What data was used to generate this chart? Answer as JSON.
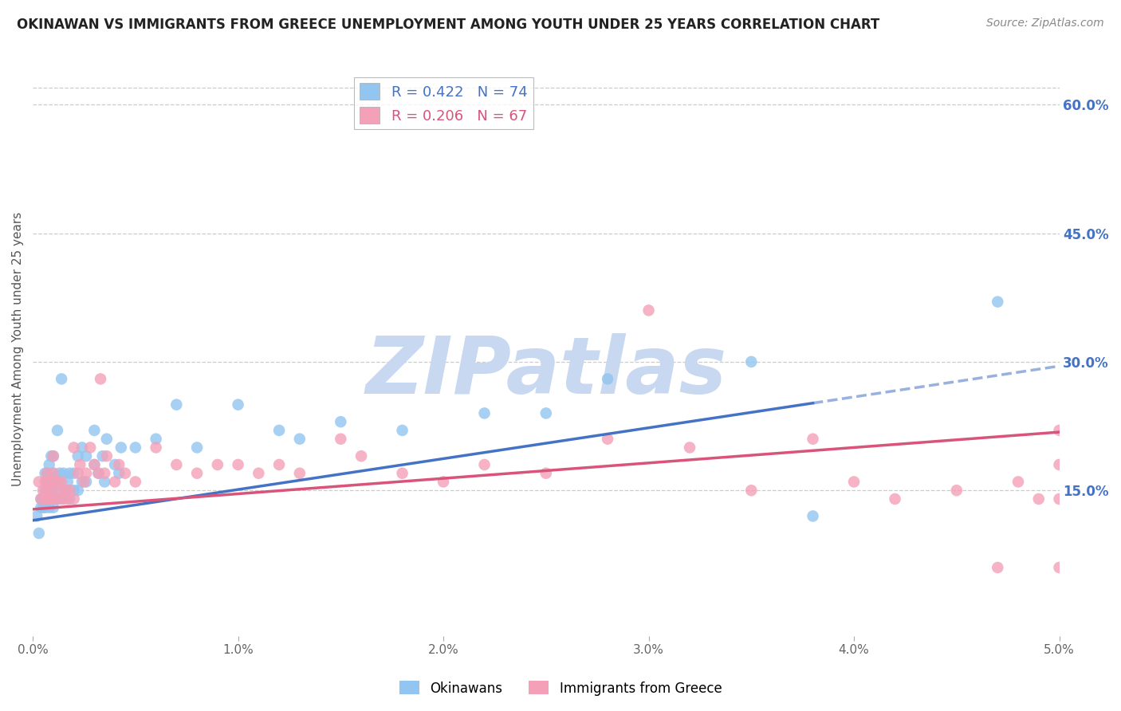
{
  "title": "OKINAWAN VS IMMIGRANTS FROM GREECE UNEMPLOYMENT AMONG YOUTH UNDER 25 YEARS CORRELATION CHART",
  "source": "Source: ZipAtlas.com",
  "ylabel": "Unemployment Among Youth under 25 years",
  "xlabel_ticks": [
    "0.0%",
    "1.0%",
    "2.0%",
    "3.0%",
    "4.0%",
    "5.0%"
  ],
  "xlabel_vals": [
    0.0,
    0.01,
    0.02,
    0.03,
    0.04,
    0.05
  ],
  "ylabel_right_ticks": [
    "60.0%",
    "45.0%",
    "30.0%",
    "15.0%"
  ],
  "ylabel_right_vals": [
    0.6,
    0.45,
    0.3,
    0.15
  ],
  "xlim": [
    0.0,
    0.05
  ],
  "ylim": [
    -0.02,
    0.65
  ],
  "blue_R": 0.422,
  "blue_N": 74,
  "pink_R": 0.206,
  "pink_N": 67,
  "blue_color": "#92c5f0",
  "blue_line_color": "#4472C4",
  "pink_color": "#f4a0b8",
  "pink_line_color": "#d9547a",
  "watermark": "ZIPatlas",
  "watermark_color": "#c8d8f0",
  "legend_label_blue": "Okinawans",
  "legend_label_pink": "Immigrants from Greece",
  "blue_line_intercept": 0.115,
  "blue_line_slope": 3.6,
  "pink_line_intercept": 0.128,
  "pink_line_slope": 1.8,
  "blue_scatter_x": [
    0.0002,
    0.0003,
    0.0004,
    0.0004,
    0.0005,
    0.0005,
    0.0006,
    0.0006,
    0.0006,
    0.0006,
    0.0007,
    0.0007,
    0.0007,
    0.0007,
    0.0007,
    0.0008,
    0.0008,
    0.0008,
    0.0008,
    0.0008,
    0.0009,
    0.0009,
    0.0009,
    0.0009,
    0.001,
    0.001,
    0.001,
    0.001,
    0.001,
    0.001,
    0.0012,
    0.0012,
    0.0013,
    0.0013,
    0.0014,
    0.0014,
    0.0015,
    0.0015,
    0.0016,
    0.0017,
    0.0018,
    0.0018,
    0.002,
    0.002,
    0.0022,
    0.0022,
    0.0024,
    0.0024,
    0.0026,
    0.0026,
    0.003,
    0.003,
    0.0032,
    0.0034,
    0.0035,
    0.0036,
    0.004,
    0.0042,
    0.0043,
    0.005,
    0.006,
    0.007,
    0.008,
    0.01,
    0.012,
    0.013,
    0.015,
    0.018,
    0.022,
    0.025,
    0.028,
    0.035,
    0.038,
    0.047
  ],
  "blue_scatter_y": [
    0.12,
    0.1,
    0.13,
    0.14,
    0.13,
    0.14,
    0.13,
    0.14,
    0.15,
    0.17,
    0.14,
    0.14,
    0.15,
    0.16,
    0.17,
    0.13,
    0.14,
    0.15,
    0.16,
    0.18,
    0.14,
    0.15,
    0.16,
    0.19,
    0.13,
    0.14,
    0.15,
    0.16,
    0.17,
    0.19,
    0.14,
    0.22,
    0.16,
    0.17,
    0.14,
    0.28,
    0.15,
    0.17,
    0.15,
    0.16,
    0.14,
    0.17,
    0.15,
    0.17,
    0.15,
    0.19,
    0.16,
    0.2,
    0.16,
    0.19,
    0.18,
    0.22,
    0.17,
    0.19,
    0.16,
    0.21,
    0.18,
    0.17,
    0.2,
    0.2,
    0.21,
    0.25,
    0.2,
    0.25,
    0.22,
    0.21,
    0.23,
    0.22,
    0.24,
    0.24,
    0.28,
    0.3,
    0.12,
    0.37
  ],
  "pink_scatter_x": [
    0.0003,
    0.0004,
    0.0005,
    0.0006,
    0.0006,
    0.0007,
    0.0007,
    0.0008,
    0.0008,
    0.0009,
    0.001,
    0.001,
    0.001,
    0.001,
    0.0012,
    0.0012,
    0.0013,
    0.0014,
    0.0015,
    0.0016,
    0.0017,
    0.0018,
    0.002,
    0.002,
    0.0022,
    0.0023,
    0.0025,
    0.0026,
    0.0028,
    0.003,
    0.0032,
    0.0033,
    0.0035,
    0.0036,
    0.004,
    0.0042,
    0.0045,
    0.005,
    0.006,
    0.007,
    0.008,
    0.009,
    0.01,
    0.011,
    0.012,
    0.013,
    0.015,
    0.016,
    0.018,
    0.02,
    0.022,
    0.025,
    0.028,
    0.03,
    0.032,
    0.035,
    0.038,
    0.04,
    0.042,
    0.045,
    0.047,
    0.048,
    0.049,
    0.05,
    0.05,
    0.05,
    0.05
  ],
  "pink_scatter_y": [
    0.16,
    0.14,
    0.15,
    0.14,
    0.16,
    0.15,
    0.17,
    0.14,
    0.16,
    0.15,
    0.14,
    0.16,
    0.17,
    0.19,
    0.14,
    0.16,
    0.15,
    0.16,
    0.14,
    0.15,
    0.14,
    0.15,
    0.14,
    0.2,
    0.17,
    0.18,
    0.16,
    0.17,
    0.2,
    0.18,
    0.17,
    0.28,
    0.17,
    0.19,
    0.16,
    0.18,
    0.17,
    0.16,
    0.2,
    0.18,
    0.17,
    0.18,
    0.18,
    0.17,
    0.18,
    0.17,
    0.21,
    0.19,
    0.17,
    0.16,
    0.18,
    0.17,
    0.21,
    0.36,
    0.2,
    0.15,
    0.21,
    0.16,
    0.14,
    0.15,
    0.06,
    0.16,
    0.14,
    0.06,
    0.14,
    0.18,
    0.22
  ]
}
